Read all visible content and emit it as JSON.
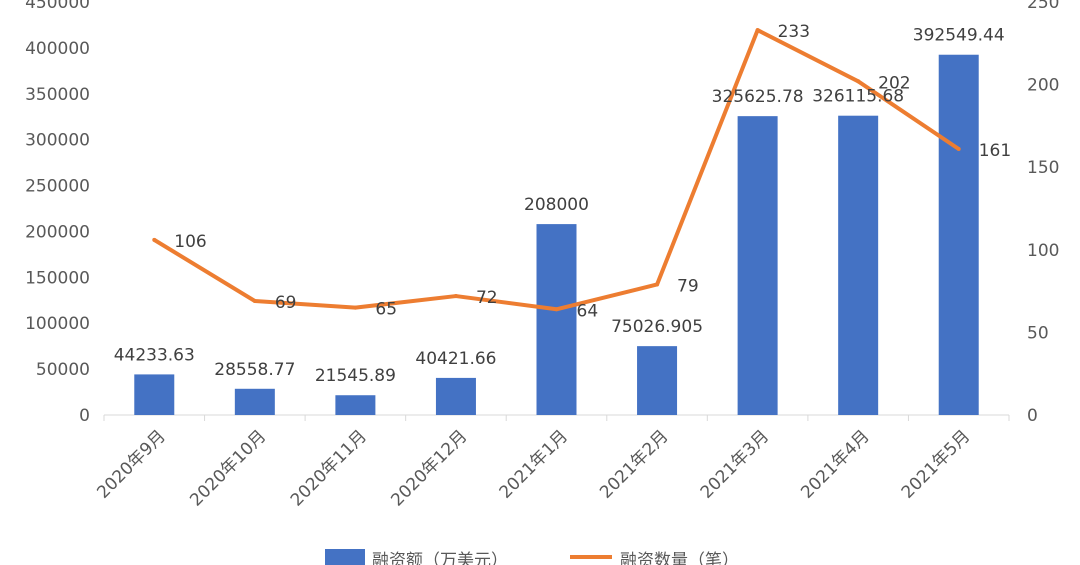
{
  "chart_data": {
    "type": "bar",
    "categories": [
      "2020年9月",
      "2020年10月",
      "2020年11月",
      "2020年12月",
      "2021年1月",
      "2021年2月",
      "2021年3月",
      "2021年4月",
      "2021年5月"
    ],
    "category_labels": [
      "2020年9月",
      "2020年10月",
      "2020年11月",
      "2020年12月",
      "2021年1月",
      "2021年2月",
      "2021年3月",
      "2021年4月",
      "2021年5月"
    ],
    "series": [
      {
        "name": "融资额（万美元）",
        "type": "bar",
        "axis": "left",
        "color": "#4472C4",
        "values": [
          44233.63,
          28558.77,
          21545.89,
          40421.66,
          208000,
          75026.905,
          325625.78,
          326115.68,
          392549.44
        ],
        "labels": [
          "44233.63",
          "28558.77",
          "21545.89",
          "40421.66",
          "208000",
          "75026.905",
          "325625.78",
          "326115.68",
          "392549.44"
        ]
      },
      {
        "name": "融资数量（笔）",
        "type": "line",
        "axis": "right",
        "color": "#ED7D31",
        "values": [
          106,
          69,
          65,
          72,
          64,
          79,
          233,
          202,
          161
        ],
        "labels": [
          "106",
          "69",
          "65",
          "72",
          "64",
          "79",
          "233",
          "202",
          "161"
        ]
      }
    ],
    "y_left": {
      "min": 0,
      "max": 450000,
      "ticks": [
        "0",
        "50000",
        "100000",
        "150000",
        "200000",
        "250000",
        "300000",
        "350000",
        "400000",
        "450000"
      ]
    },
    "y_right": {
      "min": 0,
      "max": 250,
      "ticks": [
        "0",
        "50",
        "100",
        "150",
        "200",
        "250"
      ]
    },
    "grid": false,
    "legend_position": "bottom"
  }
}
